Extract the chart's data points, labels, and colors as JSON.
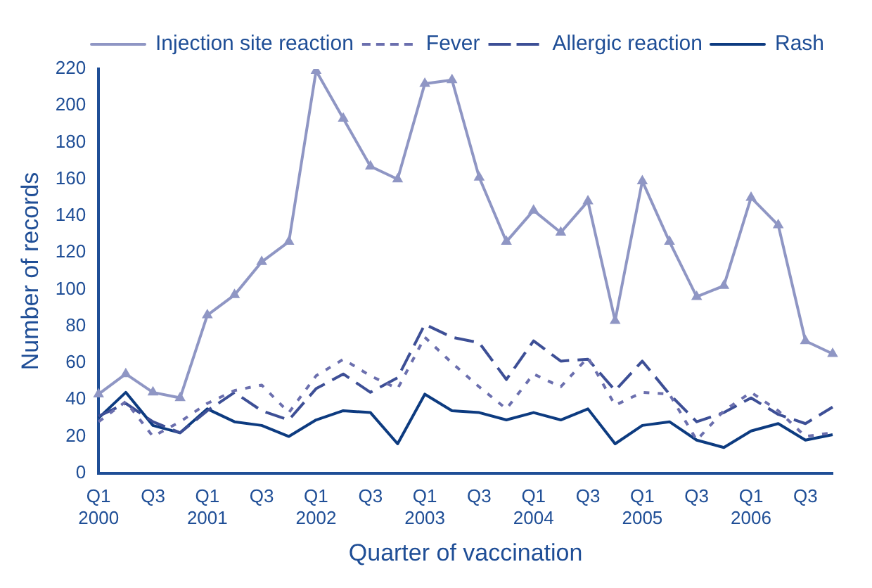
{
  "chart_data": {
    "type": "line",
    "xlabel": "Quarter of vaccination",
    "ylabel": "Number of records",
    "categories": [
      "Q1\n2000",
      null,
      "Q3",
      null,
      "Q1\n2001",
      null,
      "Q3",
      null,
      "Q1\n2002",
      null,
      "Q3",
      null,
      "Q1\n2003",
      null,
      "Q3",
      null,
      "Q1\n2004",
      null,
      "Q3",
      null,
      "Q1\n2005",
      null,
      "Q3",
      null,
      "Q1\n2006",
      null,
      "Q3",
      null
    ],
    "series": [
      {
        "name": "Injection site reaction",
        "color": "#8f96c4",
        "marker": "triangle",
        "line_style": "solid",
        "values": [
          43,
          54,
          44,
          41,
          86,
          97,
          115,
          126,
          219,
          193,
          167,
          160,
          212,
          214,
          161,
          126,
          143,
          131,
          148,
          83,
          159,
          126,
          96,
          102,
          150,
          135,
          72,
          65
        ]
      },
      {
        "name": "Fever",
        "color": "#6b6fae",
        "marker": "none",
        "line_style": "dotted",
        "values": [
          28,
          39,
          20,
          28,
          38,
          45,
          48,
          33,
          53,
          62,
          53,
          46,
          74,
          60,
          47,
          35,
          54,
          47,
          63,
          37,
          44,
          43,
          18,
          34,
          44,
          34,
          20,
          22
        ]
      },
      {
        "name": "Allergic reaction",
        "color": "#3d4f96",
        "marker": "none",
        "line_style": "dashed",
        "values": [
          31,
          38,
          28,
          22,
          34,
          44,
          34,
          29,
          46,
          54,
          44,
          52,
          81,
          74,
          71,
          51,
          72,
          61,
          62,
          45,
          61,
          43,
          28,
          33,
          41,
          32,
          27,
          36
        ]
      },
      {
        "name": "Rash",
        "color": "#0d3b80",
        "marker": "none",
        "line_style": "solid",
        "values": [
          30,
          44,
          26,
          22,
          35,
          28,
          26,
          20,
          29,
          34,
          33,
          16,
          43,
          34,
          33,
          29,
          33,
          29,
          35,
          16,
          26,
          28,
          18,
          14,
          23,
          27,
          18,
          21
        ]
      }
    ],
    "ylim": [
      0,
      220
    ],
    "yticks": [
      0,
      20,
      40,
      60,
      80,
      100,
      120,
      140,
      160,
      180,
      200,
      220
    ],
    "grid": false,
    "legend": "top right"
  }
}
